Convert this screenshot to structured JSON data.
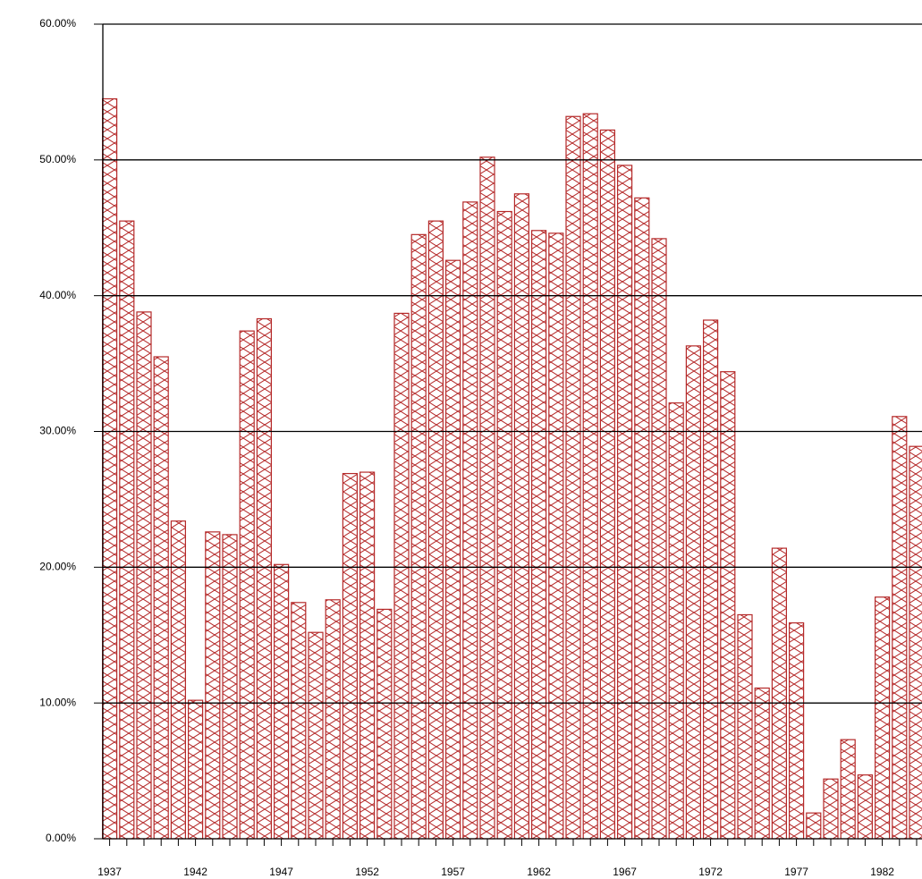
{
  "chart_data": {
    "type": "bar",
    "categories": [
      "1937",
      null,
      null,
      null,
      null,
      "1942",
      null,
      null,
      null,
      null,
      "1947",
      null,
      null,
      null,
      null,
      "1952",
      null,
      null,
      null,
      null,
      "1957",
      null,
      null,
      null,
      null,
      "1962",
      null,
      null,
      null,
      null,
      "1967",
      null,
      null,
      null,
      null,
      "1972",
      null,
      null,
      null,
      null,
      "1977",
      null,
      null,
      null,
      null,
      "1982",
      null,
      null
    ],
    "values": [
      54.5,
      45.5,
      38.8,
      35.5,
      23.4,
      10.2,
      22.6,
      22.4,
      37.4,
      38.3,
      20.2,
      17.4,
      15.2,
      17.6,
      26.9,
      27.0,
      16.9,
      38.7,
      44.5,
      45.5,
      42.6,
      46.9,
      50.2,
      46.2,
      47.5,
      44.8,
      44.6,
      53.2,
      53.4,
      52.2,
      49.6,
      47.2,
      44.2,
      32.1,
      36.3,
      38.2,
      34.4,
      16.5,
      11.1,
      21.4,
      15.9,
      1.9,
      4.4,
      7.3,
      4.7,
      17.8,
      31.1,
      28.9
    ],
    "color": "#b52a2a",
    "ylim": [
      0,
      60
    ],
    "yticks": [
      {
        "value": 0,
        "label": "0.00%"
      },
      {
        "value": 10,
        "label": "10.00%"
      },
      {
        "value": 20,
        "label": "20.00%"
      },
      {
        "value": 30,
        "label": "30.00%"
      },
      {
        "value": 40,
        "label": "40.00%"
      },
      {
        "value": 50,
        "label": "50.00%"
      },
      {
        "value": 60,
        "label": "60.00%"
      }
    ],
    "grid": true
  }
}
